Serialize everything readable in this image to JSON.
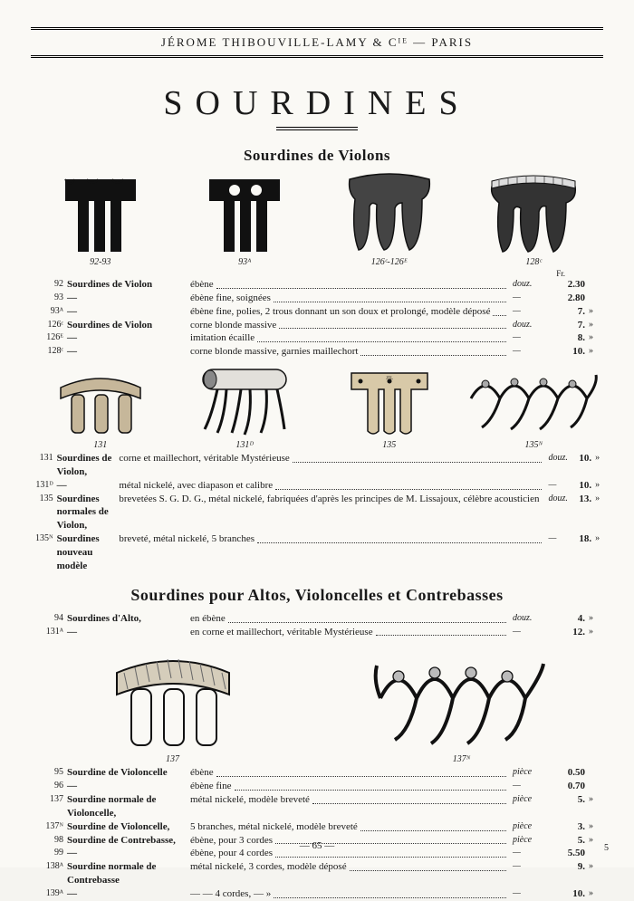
{
  "masthead": "JÉROME  THIBOUVILLE-LAMY  &  Cᴵᴱ  —  PARIS",
  "title": "SOURDINES",
  "section1": {
    "heading": "Sourdines de Violons",
    "illus": [
      {
        "cap": "92-93"
      },
      {
        "cap": "93ᴬ"
      },
      {
        "cap": "126ᶜ-126ᴱ"
      },
      {
        "cap": "128ᶜ"
      }
    ],
    "fr_label": "Fr.",
    "rows": [
      {
        "ref": "92",
        "name": "Sourdines de Violon",
        "desc": "ébène",
        "unit": "douz.",
        "price": "2.30",
        "mark": ""
      },
      {
        "ref": "93",
        "name": "—",
        "desc": "ébène fine, soignées",
        "unit": "—",
        "price": "2.80",
        "mark": ""
      },
      {
        "ref": "93ᴬ",
        "name": "—",
        "desc": "ébène fine, polies, 2 trous donnant un son doux et prolongé, modèle déposé",
        "unit": "—",
        "price": "7.",
        "mark": "»"
      },
      {
        "ref": "126ᶜ",
        "name": "Sourdines de Violon",
        "desc": "corne blonde massive",
        "unit": "douz.",
        "price": "7.",
        "mark": "»"
      },
      {
        "ref": "126ᴱ",
        "name": "—",
        "desc": "imitation écaille",
        "unit": "—",
        "price": "8.",
        "mark": "»"
      },
      {
        "ref": "128ᶜ",
        "name": "—",
        "desc": "corne blonde massive, garnies maillechort",
        "unit": "—",
        "price": "10.",
        "mark": "»"
      }
    ],
    "illus2": [
      {
        "cap": "131"
      },
      {
        "cap": "131ᴰ"
      },
      {
        "cap": "135"
      },
      {
        "cap": "135ᴺ"
      }
    ],
    "rows2": [
      {
        "ref": "131",
        "name": "Sourdines de Violon,",
        "desc": "corne et maillechort, véritable Mystérieuse",
        "unit": "douz.",
        "price": "10.",
        "mark": "»"
      },
      {
        "ref": "131ᴰ",
        "name": "—",
        "desc": "métal nickelé, avec diapason et calibre",
        "unit": "—",
        "price": "10.",
        "mark": "»"
      },
      {
        "ref": "135",
        "name": "Sourdines normales de Violon,",
        "desc": "brevetées S. G. D. G., métal nickelé, fabriquées d'après les principes de M. Lissajoux, célèbre acousticien",
        "unit": "douz.",
        "price": "13.",
        "mark": "»"
      },
      {
        "ref": "135ᴺ",
        "name": "Sourdines nouveau modèle",
        "desc": "breveté, métal nickelé, 5 branches",
        "unit": "—",
        "price": "18.",
        "mark": "»"
      }
    ]
  },
  "section2": {
    "heading": "Sourdines pour Altos, Violoncelles et Contrebasses",
    "rows_top": [
      {
        "ref": "94",
        "name": "Sourdines d'Alto,",
        "desc": "en ébène",
        "unit": "douz.",
        "price": "4.",
        "mark": "»"
      },
      {
        "ref": "131ᴬ",
        "name": "—",
        "desc": "en corne et maillechort, véritable Mystérieuse",
        "unit": "—",
        "price": "12.",
        "mark": "»"
      }
    ],
    "illus": [
      {
        "cap": "137"
      },
      {
        "cap": "137ᴺ"
      }
    ],
    "rows": [
      {
        "ref": "95",
        "name": "Sourdine de Violoncelle",
        "desc": "ébène",
        "unit": "pièce",
        "price": "0.50",
        "mark": ""
      },
      {
        "ref": "96",
        "name": "—",
        "desc": "ébène fine",
        "unit": "—",
        "price": "0.70",
        "mark": ""
      },
      {
        "ref": "137",
        "name": "Sourdine normale de Violoncelle,",
        "desc": "métal nickelé, modèle breveté",
        "unit": "pièce",
        "price": "5.",
        "mark": "»"
      },
      {
        "ref": "137ᴺ",
        "name": "Sourdine de Violoncelle,",
        "desc": "5 branches, métal nickelé, modèle breveté",
        "unit": "pièce",
        "price": "3.",
        "mark": "»"
      },
      {
        "ref": "98",
        "name": "Sourdine de Contrebasse,",
        "desc": "ébène, pour 3 cordes",
        "unit": "pièce",
        "price": "5.",
        "mark": "»"
      },
      {
        "ref": "99",
        "name": "—",
        "desc": "ébène, pour 4 cordes",
        "unit": "—",
        "price": "5.50",
        "mark": ""
      },
      {
        "ref": "138ᴬ",
        "name": "Sourdine normale de Contrebasse",
        "desc": "métal nickelé, 3 cordes, modèle déposé",
        "unit": "—",
        "price": "9.",
        "mark": "»"
      },
      {
        "ref": "139ᴬ",
        "name": "—",
        "desc": "—             —           4 cordes,        —              »",
        "unit": "—",
        "price": "10.",
        "mark": "»"
      }
    ]
  },
  "page_number": "— 65 —",
  "corner": "5",
  "colors": {
    "page_bg": "#faf9f5",
    "ink": "#1a1a1a",
    "shade": "#555"
  }
}
